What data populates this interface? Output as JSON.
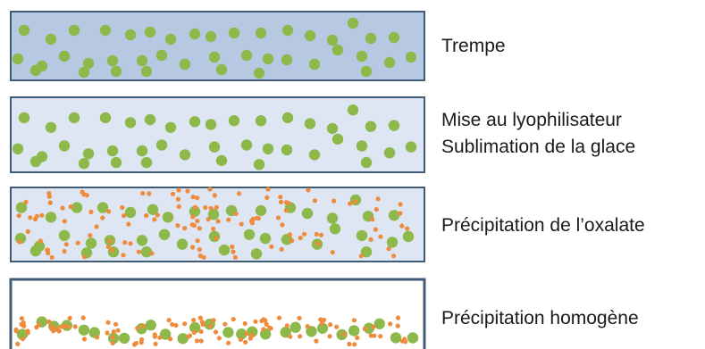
{
  "colors": {
    "panel_frozen_fill": "#b7c9e2",
    "panel_light_fill": "#dde6f2",
    "panel_empty_fill": "#ffffff",
    "panel_border": "#3f5b78",
    "grain_green": "#8db84a",
    "oxalate_orange": "#ef8b3c"
  },
  "steps": [
    {
      "id": "trempe",
      "lines": [
        "Trempe"
      ],
      "background": "frozen",
      "particles": "green"
    },
    {
      "id": "lyophilisation",
      "lines": [
        "Mise au lyophilisateur",
        "Sublimation de la glace"
      ],
      "background": "light",
      "particles": "green"
    },
    {
      "id": "precipitation-oxalate",
      "lines": [
        "Précipitation de l’oxalate"
      ],
      "background": "light",
      "particles": "green+orange"
    },
    {
      "id": "precipitation-homogene",
      "lines": [
        "Précipitation homogène"
      ],
      "background": "empty",
      "particles": "settled-green+orange"
    }
  ]
}
